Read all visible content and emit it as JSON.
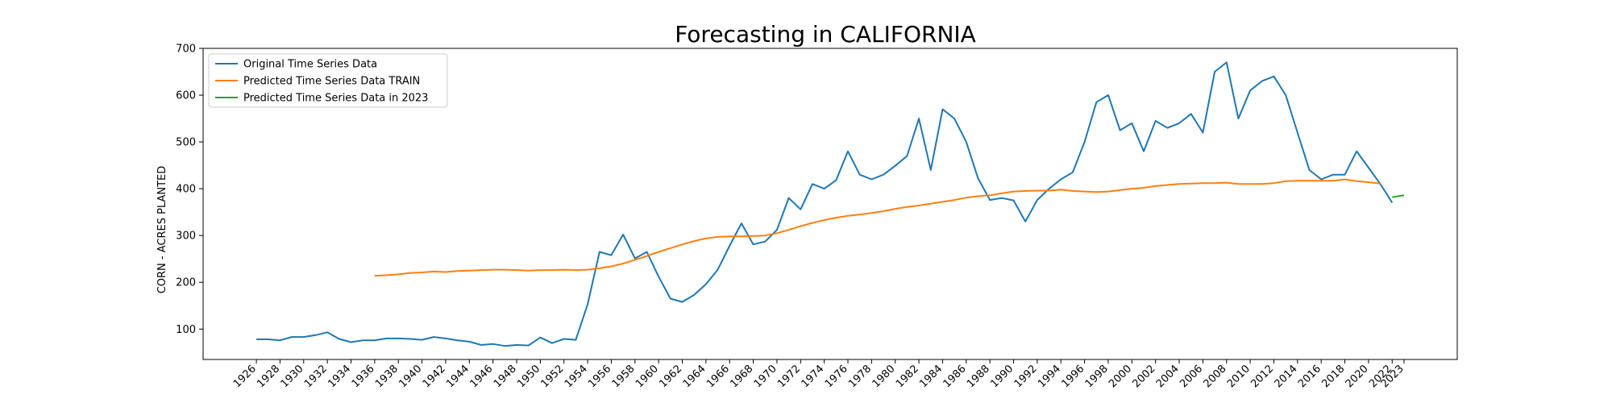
{
  "chart_data": {
    "type": "line",
    "title": "Forecasting in CALIFORNIA",
    "xlabel": "",
    "ylabel": "CORN - ACRES PLANTED",
    "xlim": [
      1921.5,
      2027.5
    ],
    "ylim": [
      35,
      700
    ],
    "yticks": [
      100,
      200,
      300,
      400,
      500,
      600,
      700
    ],
    "xticks": [
      1926,
      1928,
      1930,
      1932,
      1934,
      1936,
      1938,
      1940,
      1942,
      1944,
      1946,
      1948,
      1950,
      1952,
      1954,
      1956,
      1958,
      1960,
      1962,
      1964,
      1966,
      1968,
      1970,
      1972,
      1974,
      1976,
      1978,
      1980,
      1982,
      1984,
      1986,
      1988,
      1990,
      1992,
      1994,
      1996,
      1998,
      2000,
      2002,
      2004,
      2006,
      2008,
      2010,
      2012,
      2014,
      2016,
      2018,
      2020,
      2022,
      2023
    ],
    "legend_position": "upper-left",
    "grid": false,
    "series": [
      {
        "name": "Original Time Series Data",
        "color": "#1f77b4",
        "x": [
          1926,
          1927,
          1928,
          1929,
          1930,
          1931,
          1932,
          1933,
          1934,
          1935,
          1936,
          1937,
          1938,
          1939,
          1940,
          1941,
          1942,
          1943,
          1944,
          1945,
          1946,
          1947,
          1948,
          1949,
          1950,
          1951,
          1952,
          1953,
          1954,
          1955,
          1956,
          1957,
          1958,
          1959,
          1960,
          1961,
          1962,
          1963,
          1964,
          1965,
          1966,
          1967,
          1968,
          1969,
          1970,
          1971,
          1972,
          1973,
          1974,
          1975,
          1976,
          1977,
          1978,
          1979,
          1980,
          1981,
          1982,
          1983,
          1984,
          1985,
          1986,
          1987,
          1988,
          1989,
          1990,
          1991,
          1992,
          1993,
          1994,
          1995,
          1996,
          1997,
          1998,
          1999,
          2000,
          2001,
          2002,
          2003,
          2004,
          2005,
          2006,
          2007,
          2008,
          2009,
          2010,
          2011,
          2012,
          2013,
          2014,
          2015,
          2016,
          2017,
          2018,
          2019,
          2020,
          2021,
          2022
        ],
        "y": [
          78,
          78,
          76,
          83,
          83,
          87,
          93,
          79,
          72,
          76,
          76,
          80,
          80,
          79,
          77,
          83,
          80,
          76,
          73,
          66,
          68,
          64,
          66,
          65,
          82,
          70,
          79,
          77,
          153,
          265,
          258,
          302,
          251,
          265,
          212,
          165,
          158,
          173,
          196,
          227,
          278,
          326,
          281,
          287,
          312,
          380,
          356,
          410,
          400,
          418,
          480,
          430,
          420,
          430,
          449,
          470,
          550,
          440,
          570,
          550,
          500,
          422,
          376,
          380,
          375,
          330,
          376,
          400,
          420,
          435,
          500,
          585,
          600,
          525,
          540,
          480,
          545,
          530,
          540,
          560,
          520,
          650,
          670,
          550,
          610,
          630,
          640,
          600,
          520,
          440,
          420,
          430,
          430,
          480,
          445,
          410,
          370
        ]
      },
      {
        "name": "Predicted Time Series Data TRAIN",
        "color": "#ff7f0e",
        "x": [
          1936,
          1937,
          1938,
          1939,
          1940,
          1941,
          1942,
          1943,
          1944,
          1945,
          1946,
          1947,
          1948,
          1949,
          1950,
          1951,
          1952,
          1953,
          1954,
          1955,
          1956,
          1957,
          1958,
          1959,
          1960,
          1961,
          1962,
          1963,
          1964,
          1965,
          1966,
          1967,
          1968,
          1969,
          1970,
          1971,
          1972,
          1973,
          1974,
          1975,
          1976,
          1977,
          1978,
          1979,
          1980,
          1981,
          1982,
          1983,
          1984,
          1985,
          1986,
          1987,
          1988,
          1989,
          1990,
          1991,
          1992,
          1993,
          1994,
          1995,
          1996,
          1997,
          1998,
          1999,
          2000,
          2001,
          2002,
          2003,
          2004,
          2005,
          2006,
          2007,
          2008,
          2009,
          2010,
          2011,
          2012,
          2013,
          2014,
          2015,
          2016,
          2017,
          2018,
          2019,
          2020,
          2021
        ],
        "y": [
          214,
          215,
          217,
          220,
          221,
          223,
          222,
          224,
          225,
          226,
          227,
          227,
          226,
          225,
          226,
          226,
          227,
          226,
          227,
          230,
          234,
          240,
          248,
          256,
          265,
          273,
          281,
          288,
          294,
          297,
          298,
          298,
          299,
          300,
          305,
          312,
          320,
          327,
          333,
          338,
          342,
          345,
          348,
          352,
          357,
          361,
          364,
          368,
          372,
          376,
          381,
          384,
          386,
          390,
          394,
          395,
          396,
          396,
          398,
          395,
          394,
          393,
          394,
          397,
          400,
          402,
          406,
          408,
          410,
          411,
          412,
          412,
          413,
          410,
          410,
          410,
          412,
          416,
          417,
          417,
          417,
          417,
          420,
          416,
          414,
          411
        ]
      },
      {
        "name": "Predicted Time Series Data in 2023",
        "color": "#2ca02c",
        "x": [
          2022,
          2023
        ],
        "y": [
          382,
          386
        ]
      }
    ]
  }
}
